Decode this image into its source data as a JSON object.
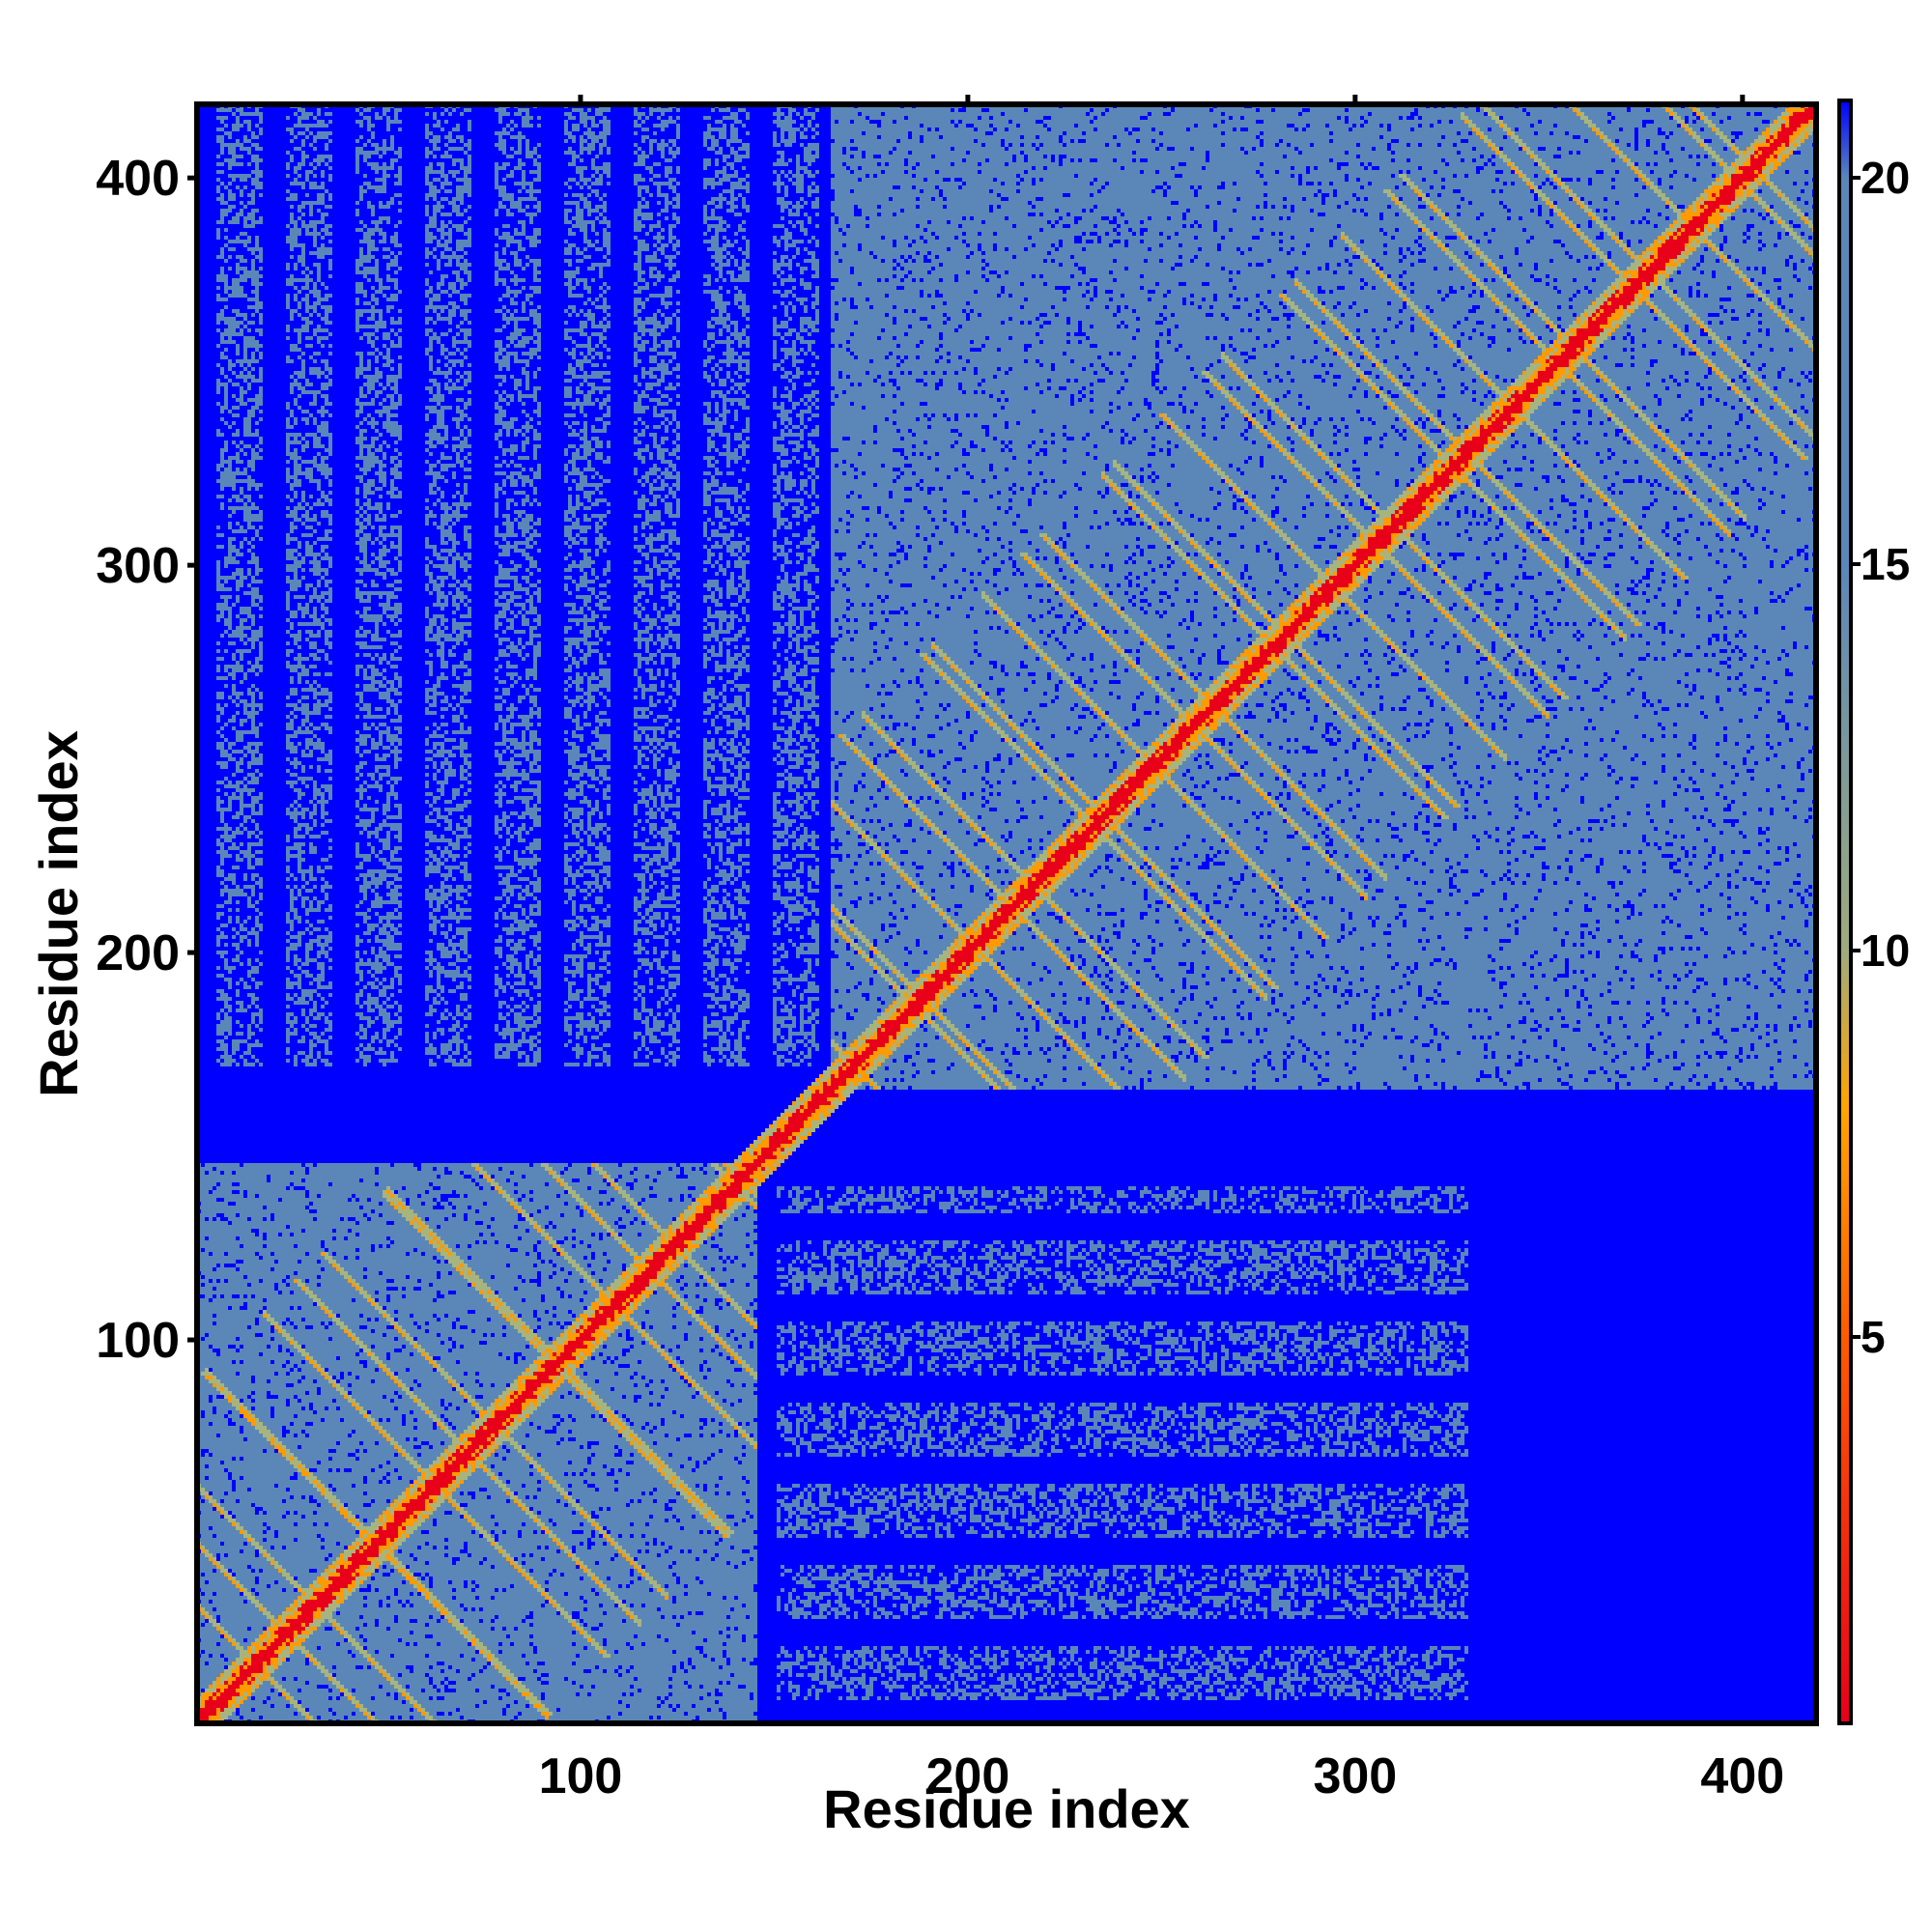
{
  "chart_data": {
    "type": "heatmap",
    "title": "",
    "xlabel": "Residue index",
    "ylabel": "Residue index",
    "xlim": [
      1,
      419
    ],
    "ylim": [
      1,
      419
    ],
    "x_ticks": [
      100,
      200,
      300,
      400
    ],
    "y_ticks": [
      100,
      200,
      300,
      400
    ],
    "colorbar": {
      "range": [
        0,
        21
      ],
      "ticks": [
        5,
        10,
        15,
        20
      ],
      "stops": [
        {
          "value": 0,
          "color": "#e8001a"
        },
        {
          "value": 5,
          "color": "#ff5a00"
        },
        {
          "value": 8,
          "color": "#ffa500"
        },
        {
          "value": 10,
          "color": "#9fab7c"
        },
        {
          "value": 15,
          "color": "#5a87b8"
        },
        {
          "value": 20,
          "color": "#5a87b8"
        },
        {
          "value": 21,
          "color": "#0000ff"
        }
      ]
    },
    "cell_colors": {
      "far": "#0000ff",
      "mid": "#5a87b8",
      "near": "#a8b47e",
      "contact": "#ff9a00",
      "diagonal": "#e8001a"
    },
    "domains": [
      {
        "start": 1,
        "end": 145
      },
      {
        "start": 165,
        "end": 419
      }
    ],
    "grid": false,
    "legend": "colorbar-right"
  }
}
